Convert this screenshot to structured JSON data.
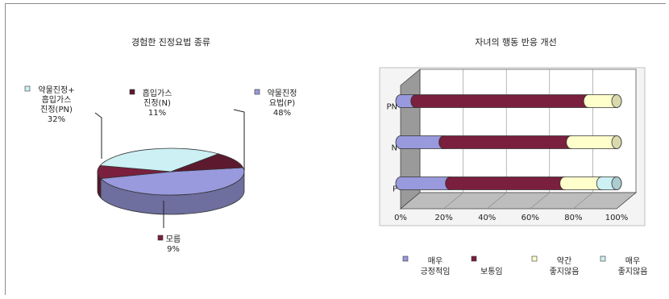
{
  "chart_data": [
    {
      "type": "pie",
      "title": "경험한 진정요법 종류",
      "slices": [
        {
          "key": "P",
          "label_lines": [
            "약물진정",
            "요법(P)"
          ],
          "value_label": "48%",
          "value": 48,
          "color": "#9999dd"
        },
        {
          "key": "M",
          "label_lines": [
            "모름"
          ],
          "value_label": "9%",
          "value": 9,
          "color": "#7a1f3d"
        },
        {
          "key": "PN",
          "label_lines": [
            "약물진정+",
            "흡입가스",
            "진정(PN)"
          ],
          "value_label": "32%",
          "value": 32,
          "color": "#ccf0f4"
        },
        {
          "key": "N",
          "label_lines": [
            "흡입가스",
            "진정(N)"
          ],
          "value_label": "11%",
          "value": 11,
          "color": "#5c1a2e"
        }
      ]
    },
    {
      "type": "bar",
      "orientation": "horizontal",
      "stacked": "percent",
      "title": "자녀의 행동 반응 개선",
      "categories": [
        "PN",
        "N",
        "P"
      ],
      "xlim": [
        0,
        100
      ],
      "x_ticks": [
        "0%",
        "20%",
        "40%",
        "60%",
        "80%",
        "100%"
      ],
      "series": [
        {
          "name": "매우 긍정적임",
          "label_lines": [
            "매우",
            "긍정적임"
          ],
          "color": "#9999dd",
          "values": [
            7,
            20,
            23
          ]
        },
        {
          "name": "보통임",
          "label_lines": [
            "보통임"
          ],
          "color": "#7a1f3d",
          "values": [
            80,
            59,
            53
          ]
        },
        {
          "name": "약간 좋지않음",
          "label_lines": [
            "약간",
            "좋지않음"
          ],
          "color": "#ffffcc",
          "values": [
            13,
            21,
            17
          ]
        },
        {
          "name": "매우 좋지않음",
          "label_lines": [
            "매우",
            "좋지않음"
          ],
          "color": "#ccf0f4",
          "values": [
            0,
            0,
            7
          ]
        }
      ],
      "legend": "bottom",
      "grid": true
    }
  ]
}
